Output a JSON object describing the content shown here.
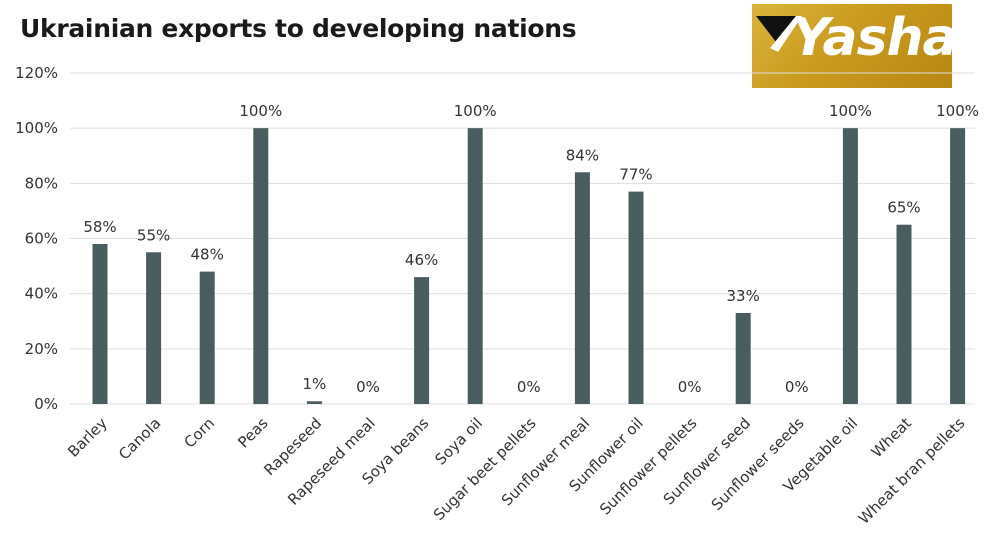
{
  "title": "Ukrainian exports to developing nations",
  "logo": {
    "text": "Yashar",
    "color": "#c99a1e"
  },
  "colors": {
    "bar": "#4a5d5e",
    "grid": "#dddddd",
    "background": "#ffffff"
  },
  "chart_data": {
    "type": "bar",
    "title": "Ukrainian exports to developing nations",
    "xlabel": "",
    "ylabel": "",
    "ylim": [
      0,
      120
    ],
    "yticks": [
      0,
      20,
      40,
      60,
      80,
      100,
      120
    ],
    "ytick_labels": [
      "0%",
      "20%",
      "40%",
      "60%",
      "80%",
      "100%",
      "120%"
    ],
    "grid": true,
    "categories": [
      "Barley",
      "Canola",
      "Corn",
      "Peas",
      "Rapeseed",
      "Rapeseed meal",
      "Soya beans",
      "Soya oil",
      "Sugar beet pellets",
      "Sunflower meal",
      "Sunflower oil",
      "Sunflower pellets",
      "Sunflower seed",
      "Sunflower seeds",
      "Vegetable oil",
      "Wheat",
      "Wheat bran pellets"
    ],
    "values": [
      58,
      55,
      48,
      100,
      1,
      0,
      46,
      100,
      0,
      84,
      77,
      0,
      33,
      0,
      100,
      65,
      100
    ],
    "value_labels": [
      "58%",
      "55%",
      "48%",
      "100%",
      "1%",
      "0%",
      "46%",
      "100%",
      "0%",
      "84%",
      "77%",
      "0%",
      "33%",
      "0%",
      "100%",
      "65%",
      "100%"
    ]
  }
}
